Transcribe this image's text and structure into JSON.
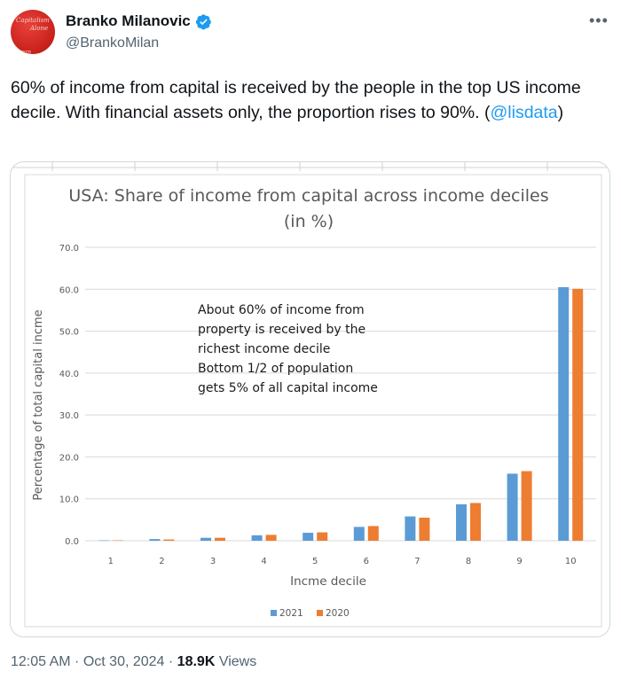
{
  "author": {
    "name": "Branko Milanovic",
    "handle": "@BrankoMilan",
    "avatar_text": [
      "Capitalism",
      "Alone",
      "Bran"
    ]
  },
  "tweet": {
    "text": "60% of income from capital is received by the people in the top US income decile. With financial assets only, the proportion rises to 90%. (",
    "mention": "@lisdata",
    "text_end": ")"
  },
  "footer": {
    "time": "12:05 AM",
    "sep1": " · ",
    "date": "Oct 30, 2024",
    "sep2": " · ",
    "views_count": "18.9K",
    "views_label": " Views"
  },
  "colors": {
    "series_2021": "#5b9bd5",
    "series_2020": "#ed7d31",
    "link": "#1d9bf0",
    "verified": "#1d9bf0"
  },
  "icons": {
    "verified": "verified-badge-icon",
    "more": "more-icon"
  },
  "chart_data": {
    "type": "bar",
    "title": "USA: Share of income from capital across income deciles",
    "subtitle": "(in %)",
    "xlabel": "Incme decile",
    "ylabel": "Percentage of total capital incme",
    "ylim": [
      0,
      70
    ],
    "yticks": [
      "0.0",
      "10.0",
      "20.0",
      "30.0",
      "40.0",
      "50.0",
      "60.0",
      "70.0"
    ],
    "grid": true,
    "legend_position": "bottom",
    "categories": [
      "1",
      "2",
      "3",
      "4",
      "5",
      "6",
      "7",
      "8",
      "9",
      "10"
    ],
    "series": [
      {
        "name": "2021",
        "values": [
          0.1,
          0.4,
          0.7,
          1.3,
          1.9,
          3.3,
          5.8,
          8.7,
          16.0,
          60.5
        ]
      },
      {
        "name": "2020",
        "values": [
          0.1,
          0.3,
          0.7,
          1.4,
          2.0,
          3.5,
          5.5,
          9.0,
          16.6,
          60.1
        ]
      }
    ],
    "annotation": [
      "About 60% of income from",
      "property is received by the",
      "richest income decile",
      "Bottom 1/2 of population",
      "gets 5% of all capital income"
    ]
  }
}
